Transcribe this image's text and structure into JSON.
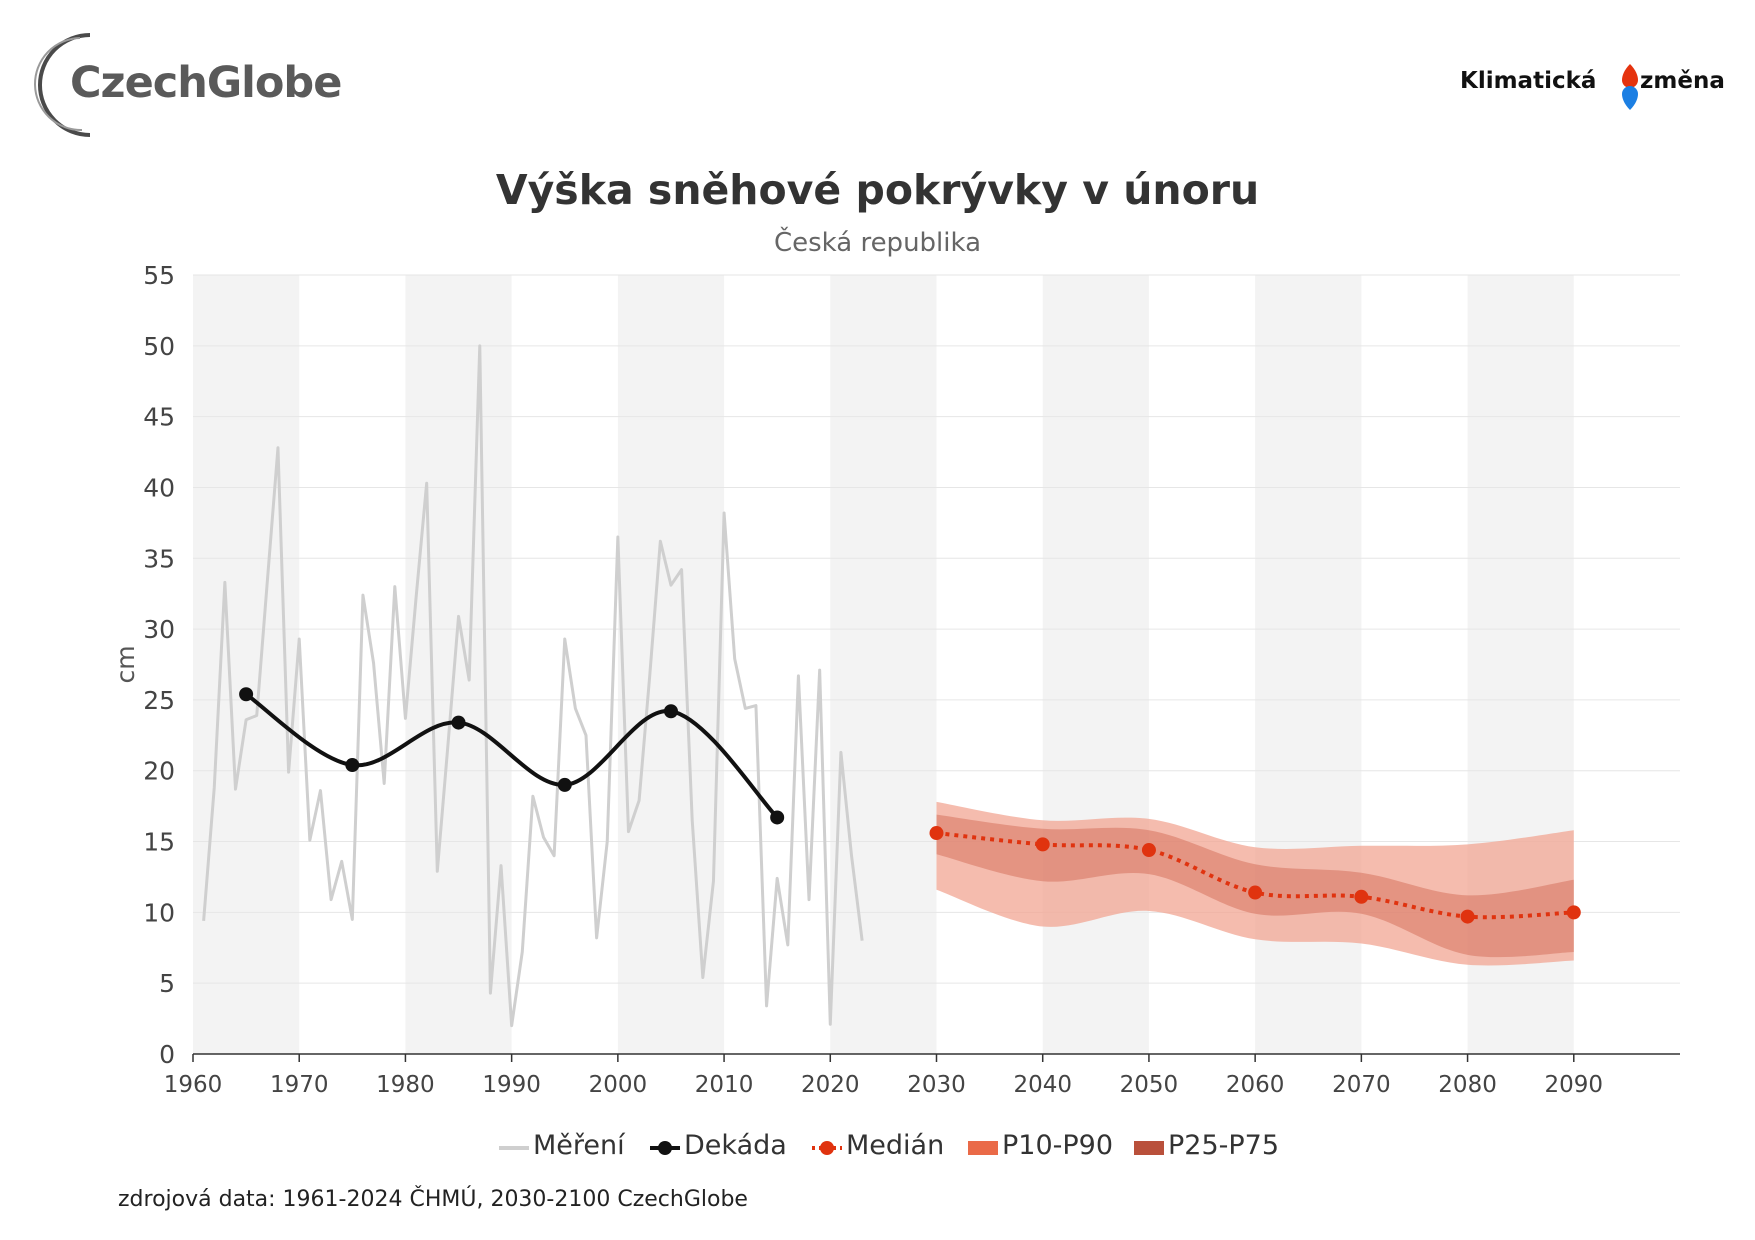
{
  "logos": {
    "left_text": "CzechGlobe",
    "right_word1": "Klimatická",
    "right_word2": "změna"
  },
  "colors": {
    "measurement": "#cfcfcf",
    "decade": "#111111",
    "median": "#e0330f",
    "p10_p90": "#f2a693",
    "p25_p75": "#d5735f",
    "band_bg": "#f3f3f3"
  },
  "chart_data": {
    "type": "line",
    "title": "Výška sněhové pokrývky v únoru",
    "subtitle": "Česká republika",
    "ylabel": "cm",
    "xlabel": "",
    "xlim": [
      1960,
      2100
    ],
    "ylim": [
      0,
      55
    ],
    "x_ticks": [
      1960,
      1970,
      1980,
      1990,
      2000,
      2010,
      2020,
      2030,
      2040,
      2050,
      2060,
      2070,
      2080,
      2090
    ],
    "y_ticks": [
      0,
      5,
      10,
      15,
      20,
      25,
      30,
      35,
      40,
      45,
      50,
      55
    ],
    "grid": "horizontal",
    "legend_position": "bottom",
    "series": [
      {
        "name": "Měření",
        "style": "line",
        "x": [
          1961,
          1962,
          1963,
          1964,
          1965,
          1966,
          1967,
          1968,
          1969,
          1970,
          1971,
          1972,
          1973,
          1974,
          1975,
          1976,
          1977,
          1978,
          1979,
          1980,
          1981,
          1982,
          1983,
          1984,
          1985,
          1986,
          1987,
          1988,
          1989,
          1990,
          1991,
          1992,
          1993,
          1994,
          1995,
          1996,
          1997,
          1998,
          1999,
          2000,
          2001,
          2002,
          2003,
          2004,
          2005,
          2006,
          2007,
          2008,
          2009,
          2010,
          2011,
          2012,
          2013,
          2014,
          2015,
          2016,
          2017,
          2018,
          2019,
          2020,
          2021,
          2022,
          2023
        ],
        "y": [
          9.4,
          18.8,
          33.3,
          18.7,
          23.6,
          23.9,
          33.4,
          42.8,
          19.9,
          29.3,
          15.1,
          18.6,
          10.9,
          13.6,
          9.5,
          32.4,
          27.6,
          19.1,
          33.0,
          23.7,
          32.2,
          40.3,
          12.9,
          21.8,
          30.9,
          26.4,
          50.0,
          4.3,
          13.3,
          2.0,
          7.2,
          18.2,
          15.3,
          14.0,
          29.3,
          24.4,
          22.5,
          8.2,
          15.0,
          36.5,
          15.7,
          17.9,
          26.7,
          36.2,
          33.1,
          34.2,
          16.5,
          5.4,
          12.2,
          38.2,
          27.9,
          24.4,
          24.6,
          3.4,
          12.4,
          7.7,
          26.7,
          10.9,
          27.1,
          2.1,
          21.3,
          14.0,
          8.0
        ]
      },
      {
        "name": "Dekáda",
        "style": "line-markers",
        "x": [
          1965,
          1975,
          1985,
          1995,
          2005,
          2015
        ],
        "y": [
          25.4,
          20.4,
          23.4,
          19.0,
          24.2,
          16.7
        ]
      },
      {
        "name": "Medián",
        "style": "dotted-markers",
        "x": [
          2030,
          2040,
          2050,
          2060,
          2070,
          2080,
          2090
        ],
        "y": [
          15.6,
          14.8,
          14.4,
          11.4,
          11.1,
          9.7,
          10.0
        ]
      },
      {
        "name": "P10-P90",
        "style": "band",
        "x": [
          2030,
          2040,
          2050,
          2060,
          2070,
          2080,
          2090
        ],
        "low": [
          11.6,
          9.0,
          10.1,
          8.1,
          7.8,
          6.3,
          6.6
        ],
        "high": [
          17.8,
          16.5,
          16.6,
          14.6,
          14.7,
          14.8,
          15.8
        ]
      },
      {
        "name": "P25-P75",
        "style": "band",
        "x": [
          2030,
          2040,
          2050,
          2060,
          2070,
          2080,
          2090
        ],
        "low": [
          14.1,
          12.2,
          12.7,
          9.9,
          9.9,
          7.0,
          7.2
        ],
        "high": [
          16.9,
          15.9,
          15.8,
          13.4,
          12.8,
          11.2,
          12.3
        ]
      }
    ]
  },
  "footer": "zdrojová data: 1961-2024 ČHMÚ, 2030-2100 CzechGlobe"
}
